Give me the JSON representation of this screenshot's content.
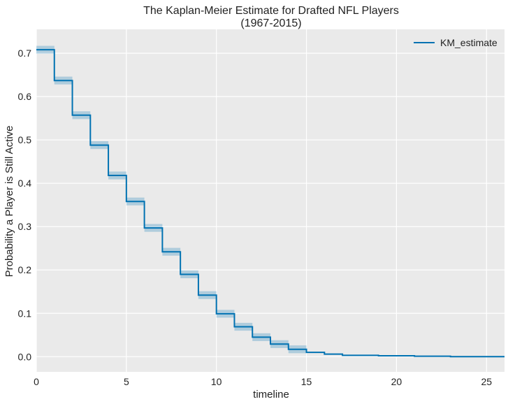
{
  "chart_data": {
    "type": "line",
    "title": "The Kaplan-Meier Estimate for Drafted NFL Players",
    "subtitle": "(1967-2015)",
    "xlabel": "timeline",
    "ylabel": "Probability a Player is Still Active",
    "xlim": [
      0,
      26
    ],
    "ylim": [
      -0.035,
      0.755
    ],
    "xticks": [
      0,
      5,
      10,
      15,
      20,
      25
    ],
    "yticks": [
      0.0,
      0.1,
      0.2,
      0.3,
      0.4,
      0.5,
      0.6,
      0.7
    ],
    "grid": true,
    "legend": "top-right",
    "series": [
      {
        "name": "KM_estimate",
        "color": "#0072b2",
        "band_color": "#0072b2",
        "x": [
          0,
          1,
          2,
          3,
          4,
          5,
          6,
          7,
          8,
          9,
          10,
          11,
          12,
          13,
          14,
          15,
          16,
          17,
          19,
          21,
          23,
          26
        ],
        "y": [
          0.708,
          0.637,
          0.557,
          0.488,
          0.418,
          0.358,
          0.297,
          0.242,
          0.19,
          0.142,
          0.099,
          0.069,
          0.045,
          0.029,
          0.017,
          0.01,
          0.006,
          0.003,
          0.002,
          0.001,
          0.0,
          0.0
        ],
        "band": 0.009
      }
    ]
  }
}
